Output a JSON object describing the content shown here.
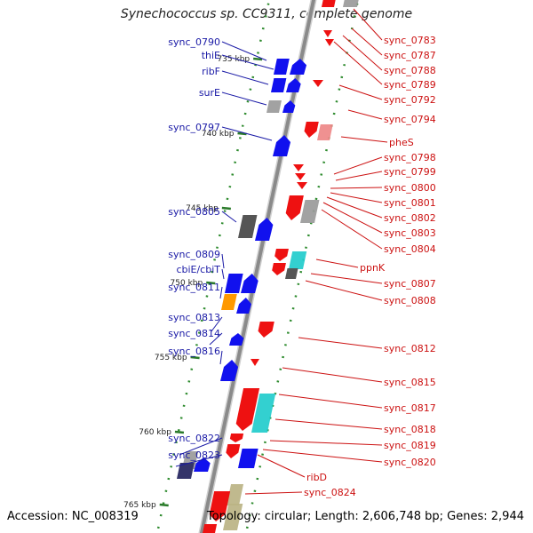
{
  "title": "Synechococcus sp. CC9311, complete genome",
  "footer": {
    "accession": "Accession: NC_008319",
    "stats": "Topology: circular; Length: 2,606,748 bp; Genes: 2,944"
  },
  "colors": {
    "backbone": "#8a8a8a",
    "dots": "#2e8b2e",
    "left_label": "#1a1aa6",
    "right_label": "#cc1111",
    "blue": "#1111ee",
    "red": "#ee1111",
    "grey": "#9a9a9a",
    "darkgrey": "#555555",
    "cyan": "#22cccc",
    "orange": "#ff9900",
    "khaki": "#bbb384",
    "lightred": "#ee8888",
    "navy": "#34346a"
  },
  "kbp_ticks": [
    "735 kbp",
    "740 kbp",
    "745 kbp",
    "750 kbp",
    "755 kbp",
    "760 kbp",
    "765 kbp"
  ],
  "left_labels": [
    "sync_0790",
    "thiE",
    "ribF",
    "surE",
    "sync_0797",
    "sync_0805",
    "sync_0809",
    "cbiE/cbiT",
    "sync_0811",
    "sync_0813",
    "sync_0814",
    "sync_0816",
    "sync_0822",
    "sync_0823"
  ],
  "right_labels": [
    "sync_0783",
    "sync_0787",
    "sync_0788",
    "sync_0789",
    "sync_0792",
    "sync_0794",
    "pheS",
    "sync_0798",
    "sync_0799",
    "sync_0800",
    "sync_0801",
    "sync_0802",
    "sync_0803",
    "sync_0804",
    "ppnK",
    "sync_0807",
    "sync_0808",
    "sync_0812",
    "sync_0815",
    "sync_0817",
    "sync_0818",
    "sync_0819",
    "sync_0820",
    "ribD",
    "sync_0824"
  ]
}
